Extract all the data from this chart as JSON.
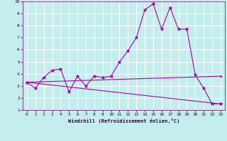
{
  "xlabel": "Windchill (Refroidissement éolien,°C)",
  "xlim": [
    -0.5,
    23.5
  ],
  "ylim": [
    1,
    10
  ],
  "xticks": [
    0,
    1,
    2,
    3,
    4,
    5,
    6,
    7,
    8,
    9,
    10,
    11,
    12,
    13,
    14,
    15,
    16,
    17,
    18,
    19,
    20,
    21,
    22,
    23
  ],
  "yticks": [
    1,
    2,
    3,
    4,
    5,
    6,
    7,
    8,
    9,
    10
  ],
  "bg_color": "#c4eeee",
  "line_color": "#aa00aa",
  "grid_color": "#ffffff",
  "line1_x": [
    0,
    1,
    2,
    3,
    4,
    5,
    6,
    7,
    8,
    9,
    10,
    11,
    12,
    13,
    14,
    15,
    16,
    17,
    18,
    19,
    20,
    21,
    22,
    23
  ],
  "line1_y": [
    3.3,
    2.8,
    3.7,
    4.3,
    4.4,
    2.5,
    3.8,
    3.0,
    3.8,
    3.7,
    3.8,
    5.0,
    5.9,
    7.0,
    9.3,
    9.8,
    7.7,
    9.5,
    7.7,
    7.7,
    3.9,
    2.8,
    1.5,
    1.5
  ],
  "line2_x": [
    0,
    23
  ],
  "line2_y": [
    3.3,
    3.8
  ],
  "line3_x": [
    0,
    23
  ],
  "line3_y": [
    3.3,
    1.5
  ],
  "tick_fontsize": 4.5,
  "xlabel_fontsize": 5.0
}
